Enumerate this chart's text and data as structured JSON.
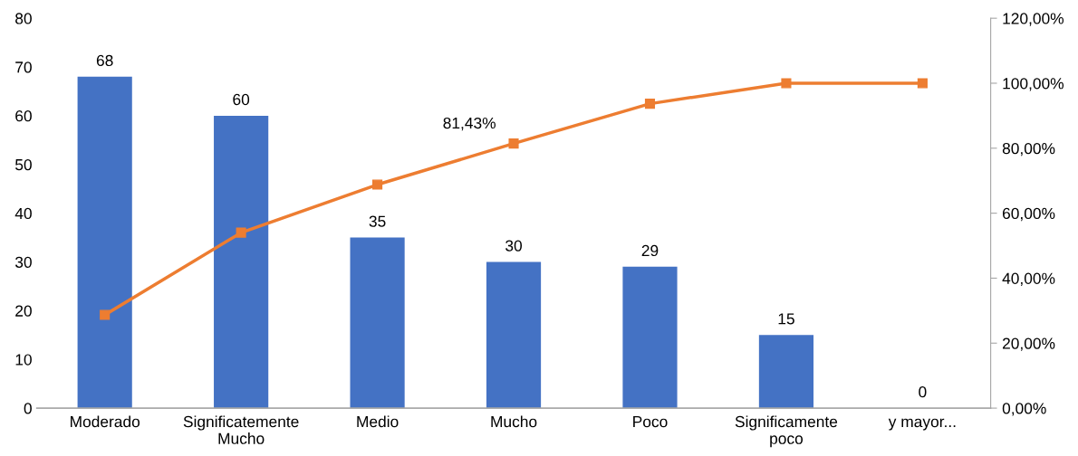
{
  "chart_data": {
    "type": "bar",
    "categories": [
      "Moderado",
      "Significatemente\nMucho",
      "Medio",
      "Mucho",
      "Poco",
      "Significamente\npoco",
      "y mayor..."
    ],
    "series": [
      {
        "color": "#4472c4",
        "values": [
          68,
          60,
          35,
          30,
          29,
          15,
          0
        ]
      },
      {
        "type": "line",
        "axis": "y2",
        "color": "#ed7d31",
        "marker": "square",
        "values": [
          28.7,
          54.0,
          68.8,
          81.43,
          93.7,
          100,
          100
        ],
        "value_labels": [
          null,
          null,
          null,
          "81,43%",
          null,
          null,
          null
        ]
      }
    ],
    "data_labels": true,
    "ylim": [
      0,
      80
    ],
    "yticks": [
      0,
      10,
      20,
      30,
      40,
      50,
      60,
      70,
      80
    ],
    "y2lim": [
      0,
      120
    ],
    "y2ticks": [
      {
        "value": 0,
        "label": "0,00%"
      },
      {
        "value": 20,
        "label": "20,00%"
      },
      {
        "value": 40,
        "label": "40,00%"
      },
      {
        "value": 60,
        "label": "60,00%"
      },
      {
        "value": 80,
        "label": "80,00%"
      },
      {
        "value": 100,
        "label": "100,00%"
      },
      {
        "value": 120,
        "label": "120,00%"
      }
    ],
    "grid": false,
    "legend": false
  }
}
